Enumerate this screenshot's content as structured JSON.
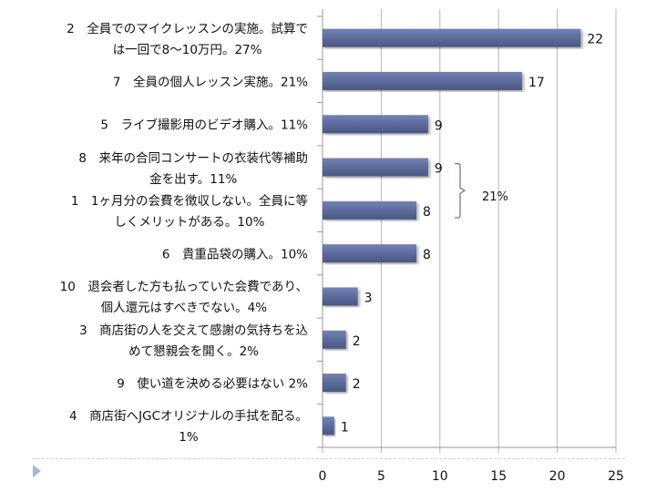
{
  "chart_data": {
    "type": "bar",
    "orientation": "horizontal",
    "categories": [
      [
        "2　全員でのマイクレッスンの実施。試算で",
        "は一回で8〜10万円。27%"
      ],
      [
        "7　全員の個人レッスン実施。21%"
      ],
      [
        "5　ライブ撮影用のビデオ購入。11%"
      ],
      [
        "8　来年の合同コンサートの衣装代等補助",
        "金を出す。11%"
      ],
      [
        "1　1ヶ月分の会費を徴収しない。全員に等",
        "しくメリットがある。10%"
      ],
      [
        "6　貴重品袋の購入。10%"
      ],
      [
        "10　退会者した方も払っていた会費であり、",
        "個人還元はすべきでない。4%"
      ],
      [
        "3　商店街の人を交えて感謝の気持ちを込",
        "めて懇親会を開く。2%"
      ],
      [
        "9　使い道を決める必要はない 2%"
      ],
      [
        "4　商店街へJGCオリジナルの手拭を配る。",
        "1%"
      ]
    ],
    "values": [
      22,
      17,
      9,
      9,
      8,
      8,
      3,
      2,
      2,
      1
    ],
    "xlim": [
      0,
      25
    ],
    "xticks": [
      "0",
      "5",
      "10",
      "15",
      "20",
      "25"
    ],
    "grid": true,
    "bar_color": "#5c6b9c",
    "annotation": {
      "text": "21%",
      "spans_categories": [
        3,
        4
      ]
    }
  }
}
